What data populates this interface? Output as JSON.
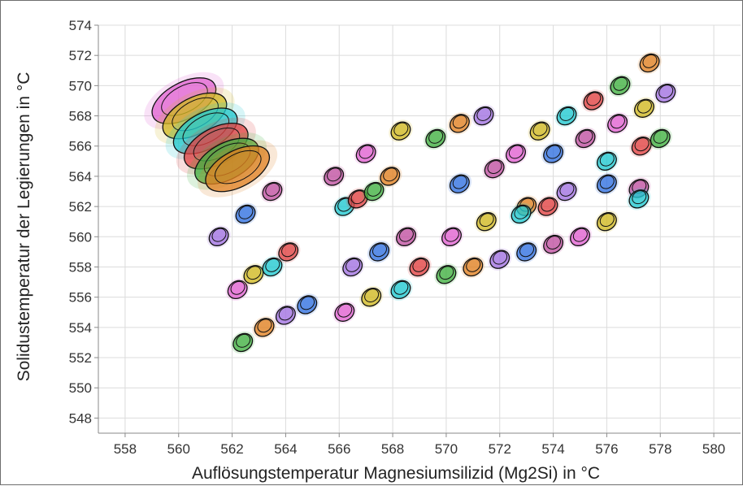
{
  "chart_data": {
    "type": "scatter",
    "title": "",
    "xlabel": "Auflösungstemperatur Magnesiumsilizid (Mg2Si) in °C",
    "ylabel": "Solidustemperatur der Legierungen in °C",
    "xlim": [
      557,
      581
    ],
    "ylim": [
      547,
      574
    ],
    "x_ticks": [
      "558",
      "560",
      "562",
      "564",
      "566",
      "568",
      "570",
      "572",
      "574",
      "576",
      "578",
      "580"
    ],
    "y_ticks": [
      "548",
      "550",
      "552",
      "554",
      "556",
      "558",
      "560",
      "562",
      "564",
      "566",
      "568",
      "570",
      "572",
      "574"
    ],
    "grid": true,
    "legend": "none",
    "marker_style": "filled contour clusters with black outlines",
    "colors": [
      "#e060d0",
      "#d0b820",
      "#20c8d0",
      "#e04040",
      "#40b040",
      "#e08020",
      "#a070e0",
      "#3070e0",
      "#c050a0"
    ],
    "points": [
      {
        "x": 560.2,
        "y": 569.0
      },
      {
        "x": 560.6,
        "y": 568.0
      },
      {
        "x": 561.0,
        "y": 567.0
      },
      {
        "x": 561.4,
        "y": 566.0
      },
      {
        "x": 561.8,
        "y": 565.0
      },
      {
        "x": 562.2,
        "y": 564.5
      },
      {
        "x": 561.5,
        "y": 560.0
      },
      {
        "x": 562.5,
        "y": 561.5
      },
      {
        "x": 563.5,
        "y": 563.0
      },
      {
        "x": 562.2,
        "y": 556.5
      },
      {
        "x": 562.8,
        "y": 557.5
      },
      {
        "x": 563.5,
        "y": 558.0
      },
      {
        "x": 564.1,
        "y": 559.0
      },
      {
        "x": 562.4,
        "y": 553.0
      },
      {
        "x": 563.2,
        "y": 554.0
      },
      {
        "x": 564.0,
        "y": 554.8
      },
      {
        "x": 564.8,
        "y": 555.5
      },
      {
        "x": 565.8,
        "y": 564.0
      },
      {
        "x": 567.0,
        "y": 565.5
      },
      {
        "x": 568.3,
        "y": 567.0
      },
      {
        "x": 566.2,
        "y": 562.0
      },
      {
        "x": 566.7,
        "y": 562.5
      },
      {
        "x": 567.3,
        "y": 563.0
      },
      {
        "x": 567.9,
        "y": 564.0
      },
      {
        "x": 566.5,
        "y": 558.0
      },
      {
        "x": 567.5,
        "y": 559.0
      },
      {
        "x": 568.5,
        "y": 560.0
      },
      {
        "x": 566.2,
        "y": 555.0
      },
      {
        "x": 567.2,
        "y": 556.0
      },
      {
        "x": 568.3,
        "y": 556.5
      },
      {
        "x": 569.0,
        "y": 558.0
      },
      {
        "x": 569.6,
        "y": 566.5
      },
      {
        "x": 570.5,
        "y": 567.5
      },
      {
        "x": 571.4,
        "y": 568.0
      },
      {
        "x": 570.5,
        "y": 563.5
      },
      {
        "x": 571.8,
        "y": 564.5
      },
      {
        "x": 572.6,
        "y": 565.5
      },
      {
        "x": 573.5,
        "y": 567.0
      },
      {
        "x": 574.5,
        "y": 568.0
      },
      {
        "x": 575.5,
        "y": 569.0
      },
      {
        "x": 576.5,
        "y": 570.0
      },
      {
        "x": 577.6,
        "y": 571.5
      },
      {
        "x": 578.2,
        "y": 569.5
      },
      {
        "x": 574.0,
        "y": 565.5
      },
      {
        "x": 575.2,
        "y": 566.5
      },
      {
        "x": 576.4,
        "y": 567.5
      },
      {
        "x": 577.4,
        "y": 568.5
      },
      {
        "x": 576.0,
        "y": 565.0
      },
      {
        "x": 577.3,
        "y": 566.0
      },
      {
        "x": 578.0,
        "y": 566.5
      },
      {
        "x": 573.0,
        "y": 562.0
      },
      {
        "x": 574.5,
        "y": 563.0
      },
      {
        "x": 576.0,
        "y": 563.5
      },
      {
        "x": 577.2,
        "y": 563.2
      },
      {
        "x": 570.2,
        "y": 560.0
      },
      {
        "x": 571.5,
        "y": 561.0
      },
      {
        "x": 572.8,
        "y": 561.5
      },
      {
        "x": 573.8,
        "y": 562.0
      },
      {
        "x": 570.0,
        "y": 557.5
      },
      {
        "x": 571.0,
        "y": 558.0
      },
      {
        "x": 572.0,
        "y": 558.5
      },
      {
        "x": 573.0,
        "y": 559.0
      },
      {
        "x": 574.0,
        "y": 559.5
      },
      {
        "x": 575.0,
        "y": 560.0
      },
      {
        "x": 576.0,
        "y": 561.0
      },
      {
        "x": 577.2,
        "y": 562.5
      }
    ]
  }
}
